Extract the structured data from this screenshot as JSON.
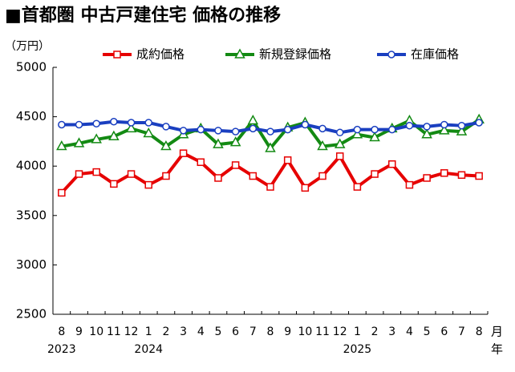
{
  "chart_data": {
    "type": "line",
    "title": "■首都圏 中古戸建住宅 価格の推移",
    "y_label": "（万円）",
    "x_unit_month": "月",
    "x_unit_year": "年",
    "categories": [
      "8",
      "9",
      "10",
      "11",
      "12",
      "1",
      "2",
      "3",
      "4",
      "5",
      "6",
      "7",
      "8",
      "9",
      "10",
      "11",
      "12",
      "1",
      "2",
      "3",
      "4",
      "5",
      "6",
      "7",
      "8"
    ],
    "year_labels": [
      "2023",
      null,
      null,
      null,
      null,
      "2024",
      null,
      null,
      null,
      null,
      null,
      null,
      null,
      null,
      null,
      null,
      null,
      "2025",
      null,
      null,
      null,
      null,
      null,
      null,
      null
    ],
    "series": [
      {
        "name": "成約価格",
        "color": "#e60000",
        "marker": "square",
        "values": [
          3730,
          3920,
          3940,
          3820,
          3920,
          3810,
          3900,
          4130,
          4040,
          3880,
          4010,
          3900,
          3790,
          4060,
          3780,
          3900,
          4100,
          3790,
          3920,
          4020,
          3810,
          3880,
          3930,
          3910,
          3900
        ]
      },
      {
        "name": "新規登録価格",
        "color": "#138a13",
        "marker": "triangle",
        "values": [
          4200,
          4230,
          4270,
          4300,
          4380,
          4330,
          4200,
          4320,
          4380,
          4220,
          4240,
          4460,
          4180,
          4390,
          4440,
          4200,
          4220,
          4320,
          4290,
          4380,
          4460,
          4320,
          4360,
          4350,
          4470
        ]
      },
      {
        "name": "在庫価格",
        "color": "#1a3fc0",
        "marker": "circle",
        "values": [
          4420,
          4420,
          4430,
          4450,
          4440,
          4440,
          4400,
          4360,
          4370,
          4360,
          4350,
          4380,
          4350,
          4370,
          4420,
          4380,
          4340,
          4370,
          4370,
          4370,
          4410,
          4400,
          4420,
          4410,
          4440
        ]
      }
    ],
    "ylim": [
      2500,
      5000
    ],
    "yticks": [
      2500,
      3000,
      3500,
      4000,
      4500,
      5000
    ],
    "grid": false,
    "legend": "top"
  }
}
